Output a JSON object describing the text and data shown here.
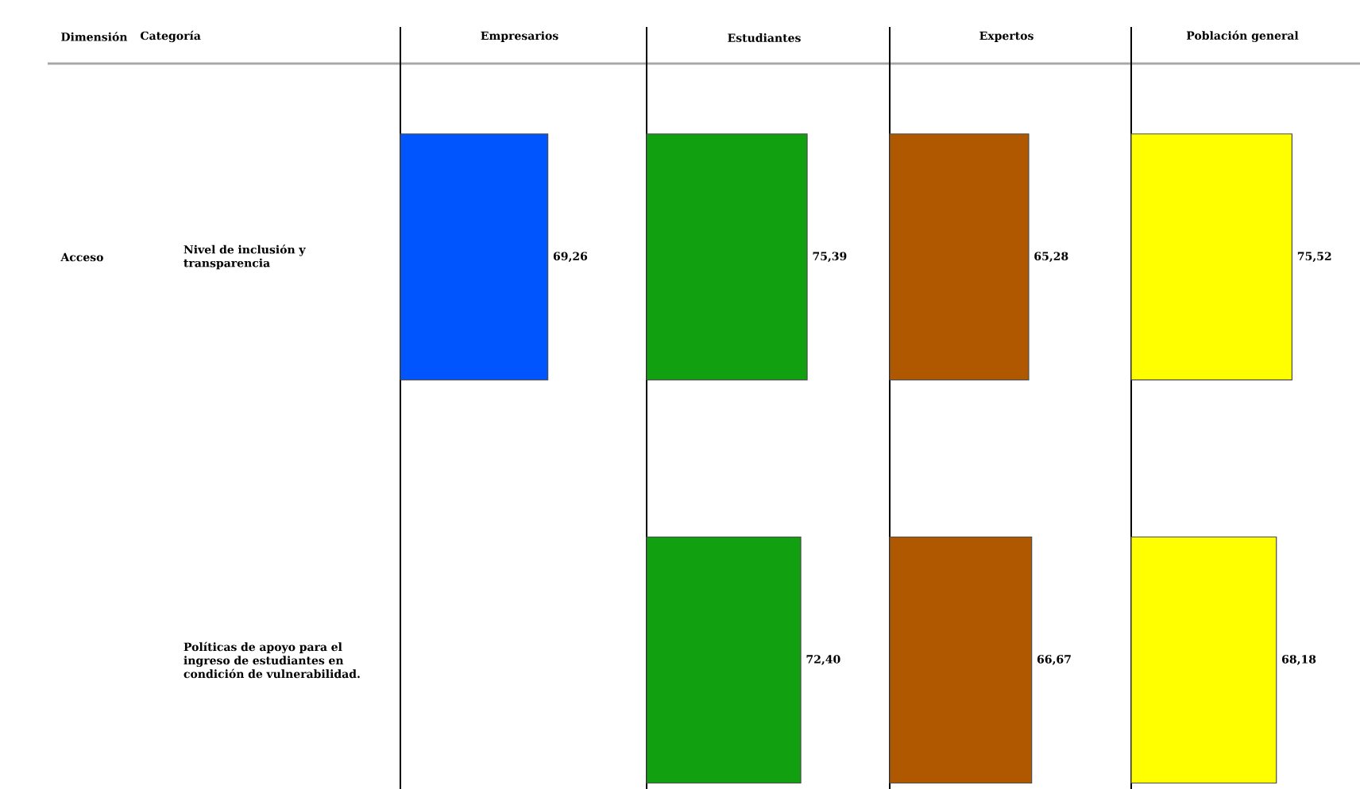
{
  "chart_data": [
    {
      "type": "bar",
      "orientation": "horizontal",
      "title": "Empresarios",
      "categories": [
        "Nivel de inclusión y transparencia",
        "Políticas de apoyo para el ingreso de estudiantes en condición de vulnerabilidad."
      ],
      "values": [
        69.26,
        null
      ],
      "value_labels": [
        "69,26",
        null
      ],
      "color": "#0055ff",
      "tick_labels": "y",
      "annotations": [
        "Dimensión",
        "Categoría",
        "Acceso"
      ]
    },
    {
      "type": "bar",
      "orientation": "horizontal",
      "title": "Estudiantes",
      "values": [
        75.39,
        72.4
      ],
      "value_labels": [
        "75,39",
        "72,40"
      ],
      "color": "#10a010",
      "tick_labels": false
    },
    {
      "type": "bar",
      "orientation": "horizontal",
      "title": "Expertos",
      "values": [
        65.28,
        66.67
      ],
      "value_labels": [
        "65,28",
        "66,67"
      ],
      "color": "#b05800",
      "tick_labels": false
    },
    {
      "type": "bar",
      "orientation": "horizontal",
      "title": "Población general",
      "values": [
        75.52,
        68.18
      ],
      "value_labels": [
        "75,52",
        "68,18"
      ],
      "color": "#ffff00",
      "tick_labels": false
    }
  ]
}
